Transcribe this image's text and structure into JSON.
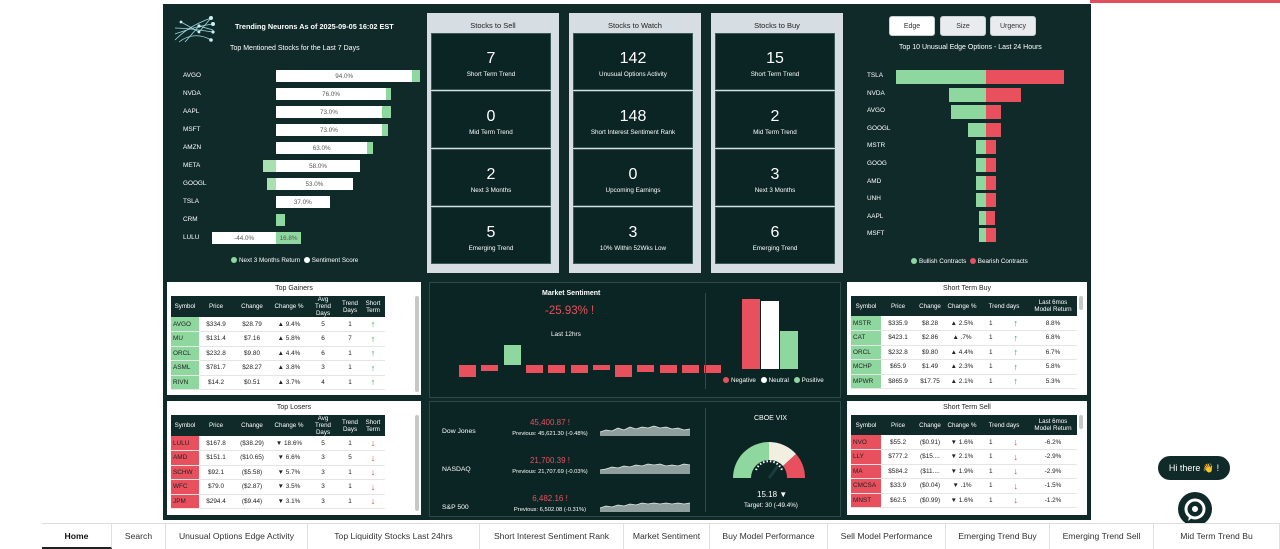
{
  "header": {
    "title": "Trending Neurons As of 2025-09-05 16:02 EST",
    "subtitle": "Top Mentioned Stocks for the Last 7 Days"
  },
  "mentioned": {
    "rows": [
      {
        "sym": "AVGO",
        "sentiment": "94.0%",
        "sentiment_value": 94.0,
        "ret_value": 5.0
      },
      {
        "sym": "NVDA",
        "sentiment": "76.0%",
        "sentiment_value": 76.0,
        "ret_value": 3.5
      },
      {
        "sym": "AAPL",
        "sentiment": "73.0%",
        "sentiment_value": 73.0,
        "ret_value": 6.0
      },
      {
        "sym": "MSFT",
        "sentiment": "73.0%",
        "sentiment_value": 73.0,
        "ret_value": 4.0
      },
      {
        "sym": "AMZN",
        "sentiment": "63.0%",
        "sentiment_value": 63.0,
        "ret_value": 3.5
      },
      {
        "sym": "META",
        "sentiment": "58.0%",
        "sentiment_value": 58.0,
        "ret_value": -9.0
      },
      {
        "sym": "GOOGL",
        "sentiment": "53.0%",
        "sentiment_value": 53.0,
        "ret_value": -6.0
      },
      {
        "sym": "TSLA",
        "sentiment": "37.0%",
        "sentiment_value": 37.0,
        "ret_value": 0.0
      },
      {
        "sym": "CRM",
        "sentiment": "",
        "sentiment_value": 0,
        "ret_value": 6.0
      },
      {
        "sym": "LULU",
        "sentiment": "-44.0%",
        "sentiment_value": -44.0,
        "ret_value": 16.8,
        "ret_label": "16.8%"
      }
    ],
    "legend_return": "Next 3 Months Return",
    "legend_sentiment": "Sentiment Score"
  },
  "panels": [
    {
      "title": "Stocks to Sell",
      "tiles": [
        {
          "num": "7",
          "label": "Short Term Trend"
        },
        {
          "num": "0",
          "label": "Mid Term Trend"
        },
        {
          "num": "2",
          "label": "Next 3 Months"
        },
        {
          "num": "5",
          "label": "Emerging Trend"
        }
      ]
    },
    {
      "title": "Stocks to Watch",
      "tiles": [
        {
          "num": "142",
          "label": "Unusual Options Activity"
        },
        {
          "num": "148",
          "label": "Short Interest Sentiment Rank"
        },
        {
          "num": "0",
          "label": "Upcoming Earnings"
        },
        {
          "num": "3",
          "label": "10% Within 52Wks Low"
        }
      ]
    },
    {
      "title": "Stocks to Buy",
      "tiles": [
        {
          "num": "15",
          "label": "Short Term Trend"
        },
        {
          "num": "2",
          "label": "Mid Term Trend"
        },
        {
          "num": "3",
          "label": "Next 3 Months"
        },
        {
          "num": "6",
          "label": "Emerging Trend"
        }
      ]
    }
  ],
  "options": {
    "buttons": [
      "Edge",
      "Size",
      "Urgency"
    ],
    "title": "Top 10 Unusual Edge Options - Last 24 Hours",
    "rows": [
      {
        "sym": "TSLA",
        "bull": 90,
        "bear": 78
      },
      {
        "sym": "NVDA",
        "bull": 37,
        "bear": 35
      },
      {
        "sym": "AVGO",
        "bull": 35,
        "bear": 15
      },
      {
        "sym": "GOOGL",
        "bull": 18,
        "bear": 15
      },
      {
        "sym": "MSTR",
        "bull": 10,
        "bear": 10
      },
      {
        "sym": "GOOG",
        "bull": 10,
        "bear": 10
      },
      {
        "sym": "AMD",
        "bull": 10,
        "bear": 10
      },
      {
        "sym": "UNH",
        "bull": 10,
        "bear": 10
      },
      {
        "sym": "AAPL",
        "bull": 7,
        "bear": 9
      },
      {
        "sym": "MSFT",
        "bull": 7,
        "bear": 10
      }
    ],
    "legend_bull": "Bullish Contracts",
    "legend_bear": "Bearish Contracts"
  },
  "gainers": {
    "title": "Top Gainers",
    "headers": [
      "Symbol",
      "Price",
      "Change",
      "Change %",
      "Avg Trend Days",
      "Trend Days",
      "Short Term"
    ],
    "rows": [
      [
        "AVGO",
        "$334.9",
        "$28.79",
        "▲ 9.4%",
        "5",
        "1"
      ],
      [
        "MU",
        "$131.4",
        "$7.16",
        "▲ 5.8%",
        "6",
        "7"
      ],
      [
        "ORCL",
        "$232.8",
        "$9.80",
        "▲ 4.4%",
        "6",
        "1"
      ],
      [
        "ASML",
        "$781.7",
        "$28.27",
        "▲ 3.8%",
        "3",
        "1"
      ],
      [
        "RIVN",
        "$14.2",
        "$0.51",
        "▲ 3.7%",
        "4",
        "1"
      ]
    ]
  },
  "losers": {
    "title": "Top Losers",
    "headers": [
      "Symbol",
      "Price",
      "Change",
      "Change %",
      "Avg Trend Days",
      "Trend Days",
      "Short Term"
    ],
    "rows": [
      [
        "LULU",
        "$167.8",
        "($38.29)",
        "▼ 18.6%",
        "5",
        "1"
      ],
      [
        "AMD",
        "$151.1",
        "($10.65)",
        "▼ 6.6%",
        "3",
        "5"
      ],
      [
        "SCHW",
        "$92.1",
        "($5.58)",
        "▼ 5.7%",
        "3",
        "1"
      ],
      [
        "WFC",
        "$79.0",
        "($2.87)",
        "▼ 3.5%",
        "3",
        "1"
      ],
      [
        "JPM",
        "$294.4",
        "($9.44)",
        "▼ 3.1%",
        "3",
        "1"
      ]
    ]
  },
  "sentiment": {
    "title": "Market Sentiment",
    "value": "-25.93% !",
    "sub": "Last 12hrs",
    "bars": [
      -12,
      -6,
      10,
      -8,
      -8,
      -8,
      -5,
      -12,
      -7,
      -8,
      -8,
      -8
    ],
    "breakdown": [
      {
        "label": "Negative",
        "value": 70,
        "color": "#e8505e"
      },
      {
        "label": "Neutral",
        "value": 68,
        "color": "#ffffff"
      },
      {
        "label": "Positive",
        "value": 38,
        "color": "#8ed79e"
      }
    ],
    "legend": [
      "Negative",
      "Neutral",
      "Positive"
    ]
  },
  "indices": [
    {
      "name": "Dow Jones",
      "value": "45,400.87 !",
      "prev": "Previous: 45,621.30 (-0.48%)"
    },
    {
      "name": "NASDAQ",
      "value": "21,700.39 !",
      "prev": "Previous: 21,707.69 (-0.03%)"
    },
    {
      "name": "S&P 500",
      "value": "6,482.16 !",
      "prev": "Previous: 6,502.08 (-0.31%)"
    }
  ],
  "vix": {
    "title": "CBOE VIX",
    "value": "15.18 ▼",
    "target": "Target: 30 (-49.4%)"
  },
  "stbuy": {
    "title": "Short Term Buy",
    "headers": [
      "Symbol",
      "Price",
      "Change",
      "Change %",
      "Trend days",
      "Last 6mos Model Return"
    ],
    "rows": [
      [
        "MSTR",
        "$335.9",
        "$8.28",
        "▲ 2.5%",
        "1",
        "8.8%"
      ],
      [
        "CAT",
        "$423.1",
        "$2.86",
        "▲ .7%",
        "1",
        "6.8%"
      ],
      [
        "ORCL",
        "$232.8",
        "$9.80",
        "▲ 4.4%",
        "1",
        "6.7%"
      ],
      [
        "MCHP",
        "$65.9",
        "$1.49",
        "▲ 2.3%",
        "1",
        "5.8%"
      ],
      [
        "MPWR",
        "$865.9",
        "$17.75",
        "▲ 2.1%",
        "1",
        "5.3%"
      ]
    ]
  },
  "stsell": {
    "title": "Short Term Sell",
    "headers": [
      "Symbol",
      "Price",
      "Change",
      "Change %",
      "Trend days",
      "Last 6mos Model Return"
    ],
    "rows": [
      [
        "NVO",
        "$55.2",
        "($0.91)",
        "▼ 1.6%",
        "1",
        "-6.2%"
      ],
      [
        "LLY",
        "$777.2",
        "($15....",
        "▼ 2.1%",
        "1",
        "-2.9%"
      ],
      [
        "MA",
        "$584.2",
        "($11....",
        "▼ 1.9%",
        "1",
        "-2.9%"
      ],
      [
        "CMCSA",
        "$33.9",
        "($0.04)",
        "▼ .1%",
        "1",
        "-1.5%"
      ],
      [
        "MNST",
        "$62.5",
        "($0.99)",
        "▼ 1.6%",
        "1",
        "-1.2%"
      ]
    ]
  },
  "chat": {
    "label": "Hi there 👋 !"
  },
  "tabs": [
    "Home",
    "Search",
    "Unusual Options Edge Activity",
    "Top Liquidity Stocks Last 24hrs",
    "Short Interest Sentiment Rank",
    "Market Sentiment",
    "Buy Model Performance",
    "Sell Model Performance",
    "Emerging Trend Buy",
    "Emerging Trend Sell",
    "Mid Term Trend Bu"
  ]
}
